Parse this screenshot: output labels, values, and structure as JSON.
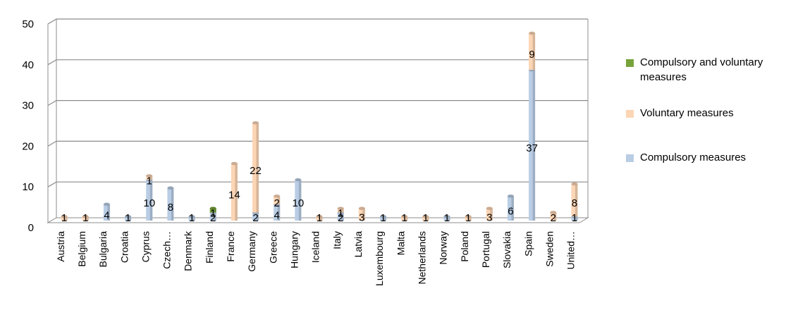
{
  "chart_data": {
    "type": "bar",
    "stacked": true,
    "three_d": true,
    "ylim": [
      0,
      50
    ],
    "yticks": [
      0,
      10,
      20,
      30,
      40,
      50
    ],
    "grid": true,
    "legend_position": "right",
    "categories": [
      "Austria",
      "Belgium",
      "Bulgaria",
      "Croatia",
      "Cyprus",
      "Czech…",
      "Denmark",
      "Finland",
      "France",
      "Germany",
      "Greece",
      "Hungary",
      "Iceland",
      "Italy",
      "Latvia",
      "Luxembourg",
      "Malta",
      "Netherlands",
      "Norway",
      "Poland",
      "Portugal",
      "Slovakia",
      "Spain",
      "Sweden",
      "United…"
    ],
    "series": [
      {
        "name": "Compulsory measures",
        "color": "#b9cde5",
        "values": [
          0,
          0,
          4,
          1,
          10,
          8,
          1,
          2,
          0,
          2,
          4,
          10,
          0,
          2,
          0,
          1,
          0,
          0,
          1,
          0,
          0,
          6,
          37,
          0,
          1
        ]
      },
      {
        "name": "Voluntary measures",
        "color": "#fcd5b5",
        "values": [
          1,
          1,
          0,
          0,
          1,
          0,
          0,
          0,
          14,
          22,
          2,
          0,
          1,
          1,
          3,
          0,
          1,
          1,
          0,
          1,
          3,
          0,
          9,
          2,
          8
        ]
      },
      {
        "name": "Compulsory and voluntary measures",
        "color": "#77a33b",
        "values": [
          0,
          0,
          0,
          0,
          0,
          0,
          0,
          1,
          0,
          0,
          0,
          0,
          0,
          0,
          0,
          0,
          0,
          0,
          0,
          0,
          0,
          0,
          0,
          0,
          0
        ]
      }
    ],
    "data_labels": [
      {
        "category": "Austria",
        "text": "1"
      },
      {
        "category": "Belgium",
        "text": "1"
      },
      {
        "category": "Bulgaria",
        "text": "4"
      },
      {
        "category": "Croatia",
        "text": "1"
      },
      {
        "category": "Cyprus",
        "text": "10"
      },
      {
        "category": "Cyprus",
        "text": "1"
      },
      {
        "category": "Czech…",
        "text": "8"
      },
      {
        "category": "Denmark",
        "text": "1"
      },
      {
        "category": "Finland",
        "text": "2"
      },
      {
        "category": "Finland",
        "text": "1"
      },
      {
        "category": "France",
        "text": "14"
      },
      {
        "category": "Germany",
        "text": "2"
      },
      {
        "category": "Germany",
        "text": "22"
      },
      {
        "category": "Greece",
        "text": "4"
      },
      {
        "category": "Greece",
        "text": "2"
      },
      {
        "category": "Hungary",
        "text": "10"
      },
      {
        "category": "Iceland",
        "text": "1"
      },
      {
        "category": "Italy",
        "text": "2"
      },
      {
        "category": "Italy",
        "text": "1"
      },
      {
        "category": "Latvia",
        "text": "3"
      },
      {
        "category": "Luxembourg",
        "text": "1"
      },
      {
        "category": "Malta",
        "text": "1"
      },
      {
        "category": "Netherlands",
        "text": "1"
      },
      {
        "category": "Norway",
        "text": "1"
      },
      {
        "category": "Poland",
        "text": "1"
      },
      {
        "category": "Portugal",
        "text": "3"
      },
      {
        "category": "Slovakia",
        "text": "6"
      },
      {
        "category": "Spain",
        "text": "37"
      },
      {
        "category": "Spain",
        "text": "9"
      },
      {
        "category": "Sweden",
        "text": "2"
      },
      {
        "category": "United…",
        "text": "1"
      },
      {
        "category": "United…",
        "text": "8"
      }
    ],
    "legend": [
      {
        "label": "Compulsory and voluntary measures",
        "color": "#77a33b"
      },
      {
        "label": "Voluntary measures",
        "color": "#fcd5b5"
      },
      {
        "label": "Compulsory measures",
        "color": "#b9cde5"
      }
    ]
  }
}
